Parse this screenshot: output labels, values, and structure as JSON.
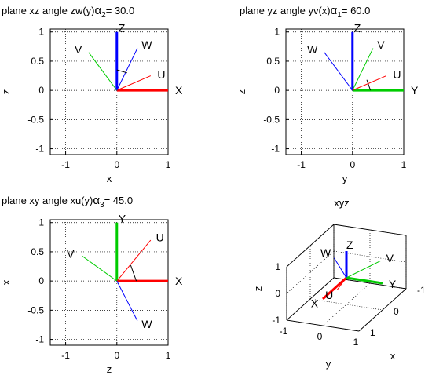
{
  "chart_data": [
    {
      "type": "vector-projection",
      "title_parts": [
        "plane xz  angle zw(y)",
        "α",
        "2",
        "=  30.0"
      ],
      "xlabel": "x",
      "ylabel": "z",
      "xlim": [
        -1.3,
        1.0
      ],
      "ylim": [
        -1.1,
        1.05
      ],
      "xticks": [
        -1,
        0,
        1
      ],
      "yticks": [
        -1,
        -0.5,
        0,
        0.5,
        1
      ],
      "xtick_labels": [
        "-1",
        "0",
        "1"
      ],
      "ytick_labels": [
        "-1",
        "-0.5",
        "0",
        "0.5",
        "1"
      ],
      "grid": "dotted",
      "vectors": [
        {
          "name": "X",
          "x": 1.0,
          "y": 0.0,
          "color": "#ff0000",
          "width": 3
        },
        {
          "name": "Z",
          "x": 0.0,
          "y": 1.0,
          "color": "#0000ff",
          "width": 3
        },
        {
          "name": "U",
          "x": 0.66,
          "y": 0.25,
          "color": "#ff0000",
          "width": 1
        },
        {
          "name": "V",
          "x": -0.55,
          "y": 0.65,
          "color": "#00cc00",
          "width": 1
        },
        {
          "name": "W",
          "x": 0.4,
          "y": 0.72,
          "color": "#0000ff",
          "width": 1
        }
      ],
      "arc": {
        "from": [
          0.0,
          0.35
        ],
        "to": [
          0.2,
          0.3
        ]
      }
    },
    {
      "type": "vector-projection",
      "title_parts": [
        "plane yz  angle yv(x)",
        "α",
        "1",
        "=  60.0"
      ],
      "xlabel": "y",
      "ylabel": "z",
      "xlim": [
        -1.3,
        1.0
      ],
      "ylim": [
        -1.1,
        1.05
      ],
      "xticks": [
        -1,
        0,
        1
      ],
      "yticks": [
        -1,
        -0.5,
        0,
        0.5,
        1
      ],
      "xtick_labels": [
        "-1",
        "0",
        "1"
      ],
      "ytick_labels": [
        "-1",
        "-0.5",
        "0",
        "0.5",
        "1"
      ],
      "grid": "dotted",
      "vectors": [
        {
          "name": "Y",
          "x": 1.0,
          "y": 0.0,
          "color": "#00cc00",
          "width": 3
        },
        {
          "name": "Z",
          "x": 0.0,
          "y": 1.0,
          "color": "#0000ff",
          "width": 3
        },
        {
          "name": "U",
          "x": 0.66,
          "y": 0.25,
          "color": "#ff0000",
          "width": 1
        },
        {
          "name": "V",
          "x": 0.4,
          "y": 0.72,
          "color": "#00cc00",
          "width": 1
        },
        {
          "name": "W",
          "x": -0.55,
          "y": 0.65,
          "color": "#0000ff",
          "width": 1
        }
      ],
      "arc": {
        "from": [
          0.35,
          0.0
        ],
        "to": [
          0.28,
          0.18
        ]
      }
    },
    {
      "type": "vector-projection",
      "title_parts": [
        "plane xy  angle xu(y)",
        "α",
        "3",
        "=  45.0"
      ],
      "xlabel": "z",
      "ylabel": "x",
      "xlim": [
        -1.3,
        1.0
      ],
      "ylim": [
        -1.1,
        1.05
      ],
      "xticks": [
        -1,
        0,
        1
      ],
      "yticks": [
        -1,
        -0.5,
        0,
        0.5,
        1
      ],
      "xtick_labels": [
        "-1",
        "0",
        "1"
      ],
      "ytick_labels": [
        "-1",
        "-0.5",
        "0",
        "0.5",
        "1"
      ],
      "grid": "dotted",
      "vectors": [
        {
          "name": "X",
          "x": 1.0,
          "y": 0.0,
          "color": "#ff0000",
          "width": 3
        },
        {
          "name": "Y",
          "x": 0.0,
          "y": 1.0,
          "color": "#00cc00",
          "width": 3
        },
        {
          "name": "U",
          "x": 0.66,
          "y": 0.7,
          "color": "#ff0000",
          "width": 1
        },
        {
          "name": "V",
          "x": -0.68,
          "y": 0.43,
          "color": "#00cc00",
          "width": 1
        },
        {
          "name": "W",
          "x": 0.4,
          "y": -0.68,
          "color": "#0000ff",
          "width": 1
        }
      ],
      "arc": {
        "from": [
          0.38,
          0.0
        ],
        "to": [
          0.27,
          0.27
        ]
      }
    },
    {
      "type": "vector-3d",
      "title": "xyz",
      "xlabel": "x",
      "ylabel": "y",
      "zlabel": "z",
      "ticks": {
        "x": [
          "-1",
          "0",
          "1"
        ],
        "y": [
          "-1",
          "0",
          "1"
        ],
        "z": [
          "-1",
          "0",
          "1"
        ]
      },
      "vectors": [
        {
          "name": "X",
          "v": [
            1,
            0,
            0
          ],
          "color": "#ff0000",
          "width": 3
        },
        {
          "name": "Y",
          "v": [
            0,
            1,
            0
          ],
          "color": "#00cc00",
          "width": 3
        },
        {
          "name": "Z",
          "v": [
            0,
            0,
            1
          ],
          "color": "#0000ff",
          "width": 3
        },
        {
          "name": "U",
          "v": [
            0.55,
            0.1,
            0.0
          ],
          "color": "#ff0000",
          "width": 1
        },
        {
          "name": "V",
          "v": [
            -0.3,
            0.75,
            0.55
          ],
          "color": "#00cc00",
          "width": 1
        },
        {
          "name": "W",
          "v": [
            -0.4,
            -0.6,
            0.3
          ],
          "color": "#0000ff",
          "width": 1
        }
      ]
    }
  ]
}
